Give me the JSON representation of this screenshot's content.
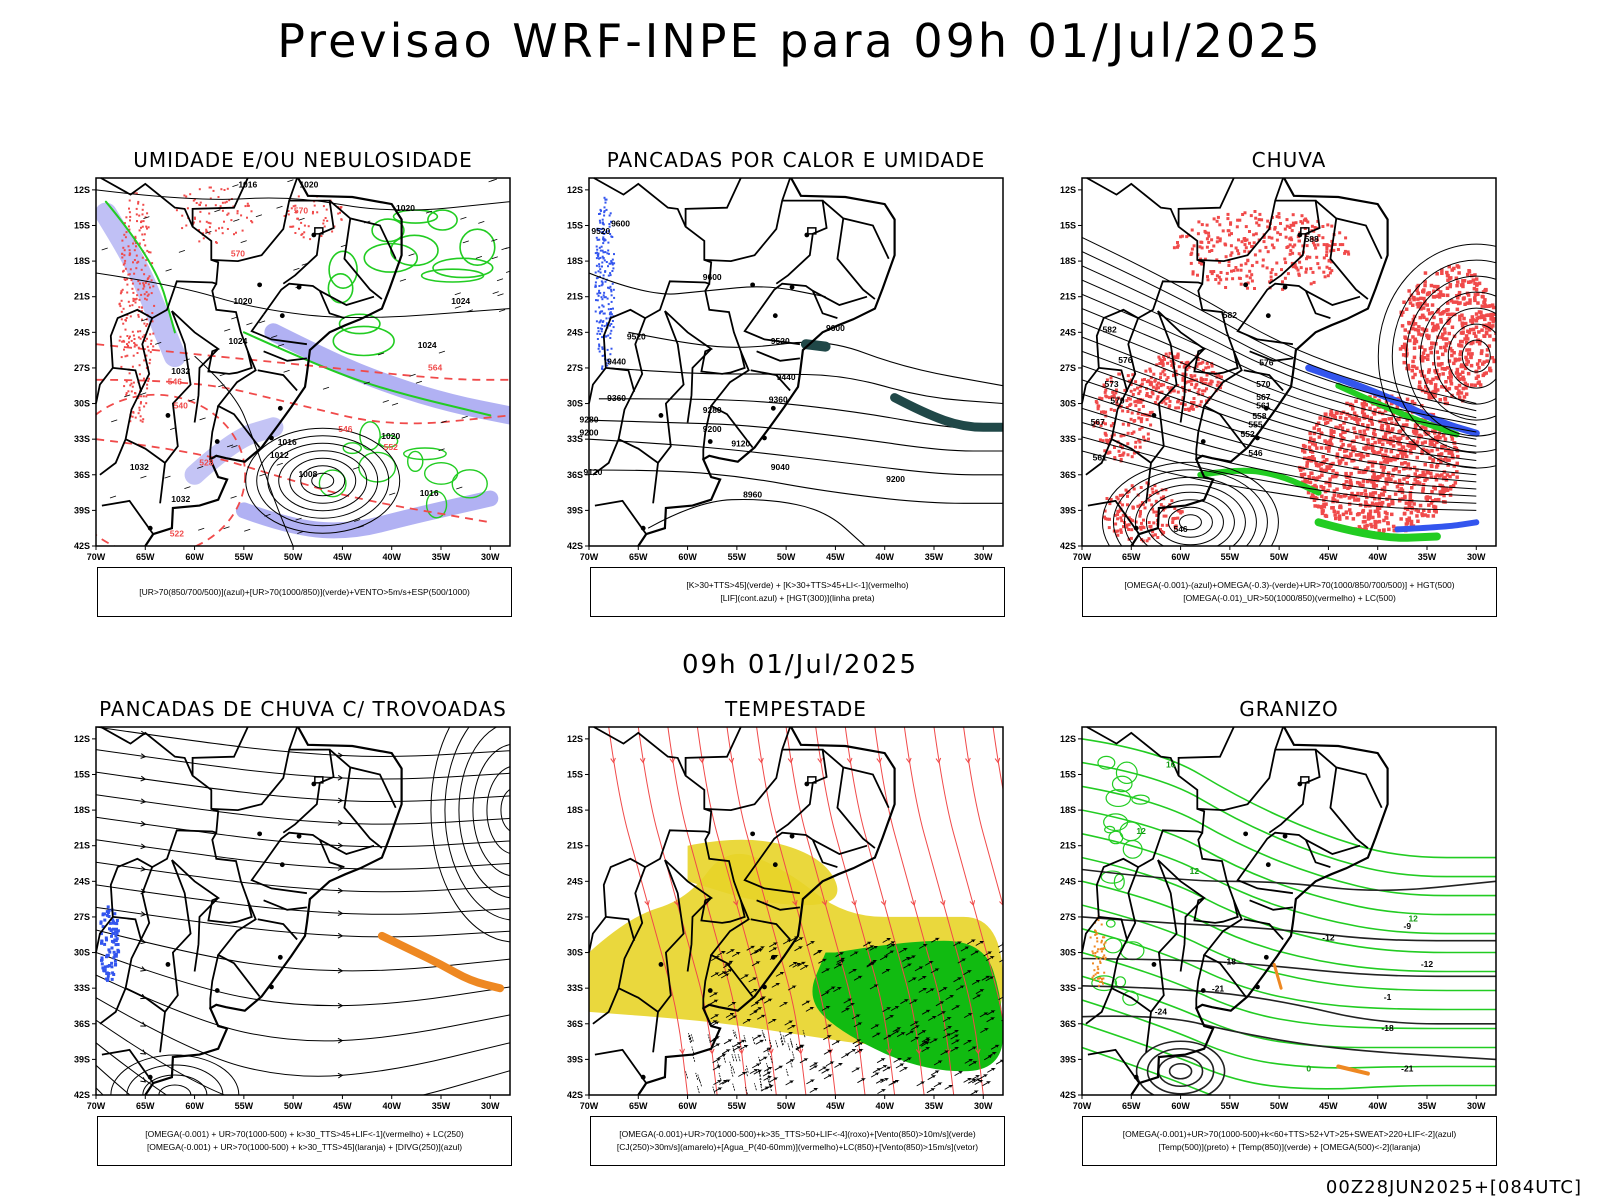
{
  "title": "Previsao WRF-INPE  para 09h 01/Jul/2025",
  "mid_title": "09h 01/Jul/2025",
  "run_info": "00Z28JUN2025+[084UTC]",
  "axes": {
    "lat_labels": [
      "12S",
      "15S",
      "18S",
      "21S",
      "24S",
      "27S",
      "30S",
      "33S",
      "36S",
      "39S",
      "42S"
    ],
    "lon_labels": [
      "70W",
      "65W",
      "60W",
      "55W",
      "50W",
      "45W",
      "40W",
      "35W",
      "30W"
    ]
  },
  "colors": {
    "red": "#f04a4a",
    "green": "#22cc22",
    "blue": "#3355ee",
    "yellow": "#e8d428",
    "orange": "#ee8822",
    "purple": "#6666ee",
    "teal": "#204848"
  },
  "panels": [
    {
      "id": "umidade",
      "title": "UMIDADE E/OU NEBULOSIDADE",
      "legend": [
        "[UR>70(850/700/500)](azul)+[UR>70(1000/850)](verde)+VENTO>5m/s+ESP(500/1000)"
      ],
      "contour_labels": [
        {
          "text": "1016",
          "lon": -54.6,
          "lat": -11.8,
          "color": "black"
        },
        {
          "text": "1020",
          "lon": -48.4,
          "lat": -11.8,
          "color": "black"
        },
        {
          "text": "1020",
          "lon": -38.6,
          "lat": -13.8,
          "color": "black"
        },
        {
          "text": "1024",
          "lon": -33.0,
          "lat": -21.6,
          "color": "black"
        },
        {
          "text": "1024",
          "lon": -36.4,
          "lat": -25.3,
          "color": "black"
        },
        {
          "text": "1020",
          "lon": -55.1,
          "lat": -21.6,
          "color": "black"
        },
        {
          "text": "1024",
          "lon": -55.6,
          "lat": -25.0,
          "color": "black"
        },
        {
          "text": "1032",
          "lon": -61.4,
          "lat": -27.5,
          "color": "black"
        },
        {
          "text": "1016",
          "lon": -50.6,
          "lat": -33.5,
          "color": "black"
        },
        {
          "text": "1012",
          "lon": -51.4,
          "lat": -34.6,
          "color": "black"
        },
        {
          "text": "1008",
          "lon": -48.5,
          "lat": -36.2,
          "color": "black"
        },
        {
          "text": "1016",
          "lon": -36.2,
          "lat": -37.8,
          "color": "black"
        },
        {
          "text": "1032",
          "lon": -61.4,
          "lat": -38.3,
          "color": "black"
        },
        {
          "text": "1032",
          "lon": -65.6,
          "lat": -35.6,
          "color": "black"
        },
        {
          "text": "1020",
          "lon": -40.1,
          "lat": -33.0,
          "color": "black"
        },
        {
          "text": "546",
          "lon": -62.0,
          "lat": -28.4,
          "color": "red"
        },
        {
          "text": "540",
          "lon": -61.4,
          "lat": -30.4,
          "color": "red"
        },
        {
          "text": "528",
          "lon": -58.8,
          "lat": -35.2,
          "color": "red"
        },
        {
          "text": "522",
          "lon": -61.8,
          "lat": -41.2,
          "color": "red"
        },
        {
          "text": "546",
          "lon": -44.7,
          "lat": -32.4,
          "color": "red"
        },
        {
          "text": "552",
          "lon": -40.1,
          "lat": -33.9,
          "color": "red"
        },
        {
          "text": "564",
          "lon": -35.6,
          "lat": -27.2,
          "color": "red"
        },
        {
          "text": "570",
          "lon": -49.2,
          "lat": -14.0,
          "color": "red"
        },
        {
          "text": "570",
          "lon": -55.6,
          "lat": -17.6,
          "color": "red"
        }
      ]
    },
    {
      "id": "pancadas_calor",
      "title": "PANCADAS POR CALOR E UMIDADE",
      "legend": [
        "[K>30+TTS>45](verde)  +  [K>30+TTS>45+LI<-1](vermelho)",
        "[LIF](cont.azul)  +  [HGT(300)](linha preta)"
      ],
      "contour_labels": [
        {
          "text": "9600",
          "lon": -66.8,
          "lat": -15.1,
          "color": "black"
        },
        {
          "text": "9520",
          "lon": -68.8,
          "lat": -15.7,
          "color": "black"
        },
        {
          "text": "9600",
          "lon": -57.5,
          "lat": -19.6,
          "color": "black"
        },
        {
          "text": "9520",
          "lon": -65.2,
          "lat": -24.6,
          "color": "black"
        },
        {
          "text": "9440",
          "lon": -67.2,
          "lat": -26.7,
          "color": "black"
        },
        {
          "text": "9360",
          "lon": -67.2,
          "lat": -29.8,
          "color": "black"
        },
        {
          "text": "9280",
          "lon": -70.0,
          "lat": -31.6,
          "color": "black"
        },
        {
          "text": "9200",
          "lon": -70.0,
          "lat": -32.7,
          "color": "black"
        },
        {
          "text": "9120",
          "lon": -69.6,
          "lat": -36.0,
          "color": "black"
        },
        {
          "text": "9600",
          "lon": -45.0,
          "lat": -23.9,
          "color": "black"
        },
        {
          "text": "9520",
          "lon": -50.6,
          "lat": -25.0,
          "color": "black"
        },
        {
          "text": "9440",
          "lon": -50.0,
          "lat": -28.0,
          "color": "black"
        },
        {
          "text": "9360",
          "lon": -50.8,
          "lat": -29.9,
          "color": "black"
        },
        {
          "text": "9280",
          "lon": -57.5,
          "lat": -30.8,
          "color": "black"
        },
        {
          "text": "9200",
          "lon": -57.5,
          "lat": -32.4,
          "color": "black"
        },
        {
          "text": "9120",
          "lon": -54.6,
          "lat": -33.6,
          "color": "black"
        },
        {
          "text": "9040",
          "lon": -50.6,
          "lat": -35.6,
          "color": "black"
        },
        {
          "text": "9200",
          "lon": -38.9,
          "lat": -36.6,
          "color": "black"
        },
        {
          "text": "8960",
          "lon": -53.4,
          "lat": -37.9,
          "color": "black"
        }
      ]
    },
    {
      "id": "chuva",
      "title": "CHUVA",
      "legend": [
        "[OMEGA(-0.001)-(azul)+OMEGA(-0.3)-(verde)+UR>70(1000/850/700/500)]  +  HGT(500)",
        "[OMEGA(-0.01)_UR>50(1000/850)(vermelho)  +  LC(500)"
      ],
      "contour_labels": [
        {
          "text": "588",
          "lon": -46.7,
          "lat": -16.4,
          "color": "black"
        },
        {
          "text": "582",
          "lon": -55.0,
          "lat": -22.8,
          "color": "black"
        },
        {
          "text": "576",
          "lon": -51.3,
          "lat": -26.8,
          "color": "black"
        },
        {
          "text": "570",
          "lon": -51.6,
          "lat": -28.6,
          "color": "black"
        },
        {
          "text": "567",
          "lon": -51.6,
          "lat": -29.7,
          "color": "black"
        },
        {
          "text": "561",
          "lon": -51.6,
          "lat": -30.4,
          "color": "black"
        },
        {
          "text": "558",
          "lon": -52.0,
          "lat": -31.3,
          "color": "black"
        },
        {
          "text": "555",
          "lon": -52.4,
          "lat": -32.0,
          "color": "black"
        },
        {
          "text": "552",
          "lon": -53.2,
          "lat": -32.8,
          "color": "black"
        },
        {
          "text": "546",
          "lon": -52.4,
          "lat": -34.4,
          "color": "black"
        },
        {
          "text": "576",
          "lon": -65.6,
          "lat": -26.6,
          "color": "black"
        },
        {
          "text": "573",
          "lon": -67.0,
          "lat": -28.6,
          "color": "black"
        },
        {
          "text": "570",
          "lon": -66.4,
          "lat": -30.0,
          "color": "black"
        },
        {
          "text": "567",
          "lon": -68.4,
          "lat": -31.8,
          "color": "black"
        },
        {
          "text": "561",
          "lon": -68.2,
          "lat": -34.8,
          "color": "black"
        },
        {
          "text": "546",
          "lon": -60.0,
          "lat": -40.8,
          "color": "black"
        },
        {
          "text": "582",
          "lon": -67.2,
          "lat": -24.0,
          "color": "black"
        }
      ]
    },
    {
      "id": "pancadas_trovoadas",
      "title": "PANCADAS DE CHUVA C/ TROVOADAS",
      "legend": [
        "[OMEGA(-0.001)  +  UR>70(1000-500)  +  k>30_TTS>45+LIF<-1](vermelho)  +  LC(250)",
        "[OMEGA(-0.001)  +  UR>70(1000-500)  +  k>30_TTS>45](laranja)  +  [DIVG(250)](azul)"
      ],
      "contour_labels": []
    },
    {
      "id": "tempestade",
      "title": "TEMPESTADE",
      "legend": [
        "[OMEGA(-0.001)+UR>70(1000-500)+k>35_TTS>50+LIF<-4](roxo)+[Vento(850)>10m/s](verde)",
        "[CJ(250)>30m/s](amarelo)+[Agua_P(40-60mm)](vermelho)+LC(850)+[Vento(850)>15m/s](vetor)"
      ],
      "contour_labels": []
    },
    {
      "id": "granizo",
      "title": "GRANIZO",
      "legend": [
        "[OMEGA(-0.001)+UR>70(1000-500)+k<60+TTS>52+VT>25+SWEAT>220+LIF<-2](azul)",
        "[Temp(500)](preto)  +  [Temp(850)](verde)  +  [OMEGA(500)<-2](laranja)"
      ],
      "contour_labels": [
        {
          "text": "-9",
          "lon": -37.0,
          "lat": -28.0,
          "color": "black"
        },
        {
          "text": "-12",
          "lon": -35.0,
          "lat": -31.2,
          "color": "black"
        },
        {
          "text": "-18",
          "lon": -55.0,
          "lat": -31.0,
          "color": "black"
        },
        {
          "text": "-21",
          "lon": -56.2,
          "lat": -33.3,
          "color": "black"
        },
        {
          "text": "-24",
          "lon": -62.0,
          "lat": -35.2,
          "color": "black"
        },
        {
          "text": "-18",
          "lon": -39.0,
          "lat": -36.6,
          "color": "black"
        },
        {
          "text": "-21",
          "lon": -37.0,
          "lat": -40.0,
          "color": "black"
        },
        {
          "text": "-12",
          "lon": -45.0,
          "lat": -29.0,
          "color": "black"
        },
        {
          "text": "-1",
          "lon": -39.0,
          "lat": -34.0,
          "color": "black"
        },
        {
          "text": "12",
          "lon": -36.4,
          "lat": -27.4,
          "color": "green"
        },
        {
          "text": "12",
          "lon": -58.6,
          "lat": -23.4,
          "color": "green"
        },
        {
          "text": "16",
          "lon": -61.0,
          "lat": -14.4,
          "color": "green"
        },
        {
          "text": "12",
          "lon": -64.0,
          "lat": -20.0,
          "color": "green"
        },
        {
          "text": "0",
          "lon": -47.0,
          "lat": -40.0,
          "color": "green"
        }
      ]
    }
  ]
}
